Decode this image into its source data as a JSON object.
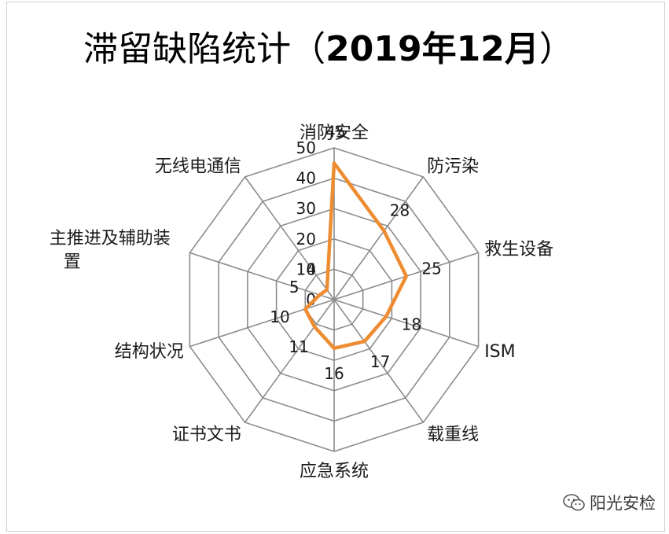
{
  "chart_data": {
    "type": "radar",
    "title": "滞留缺陷统计（2019年12月）",
    "title_parts": [
      "滞留缺陷统计（",
      "2019年12月",
      "）"
    ],
    "categories": [
      "消防安全",
      "防污染",
      "救生设备",
      "ISM",
      "载重线",
      "应急系统",
      "证书文书",
      "结构状况",
      "主推进及辅助装置",
      "无线电通信"
    ],
    "series": [
      {
        "values": [
          45,
          28,
          25,
          18,
          17,
          16,
          11,
          10,
          5,
          4
        ],
        "color": "#ED8C31"
      }
    ],
    "r_ticks": [
      0,
      10,
      20,
      30,
      40,
      50
    ],
    "rlim": [
      0,
      50
    ],
    "grid": true,
    "grid_color": "#8c8c8c"
  },
  "watermark": {
    "icon": "wechat-icon",
    "text": "阳光安检"
  }
}
